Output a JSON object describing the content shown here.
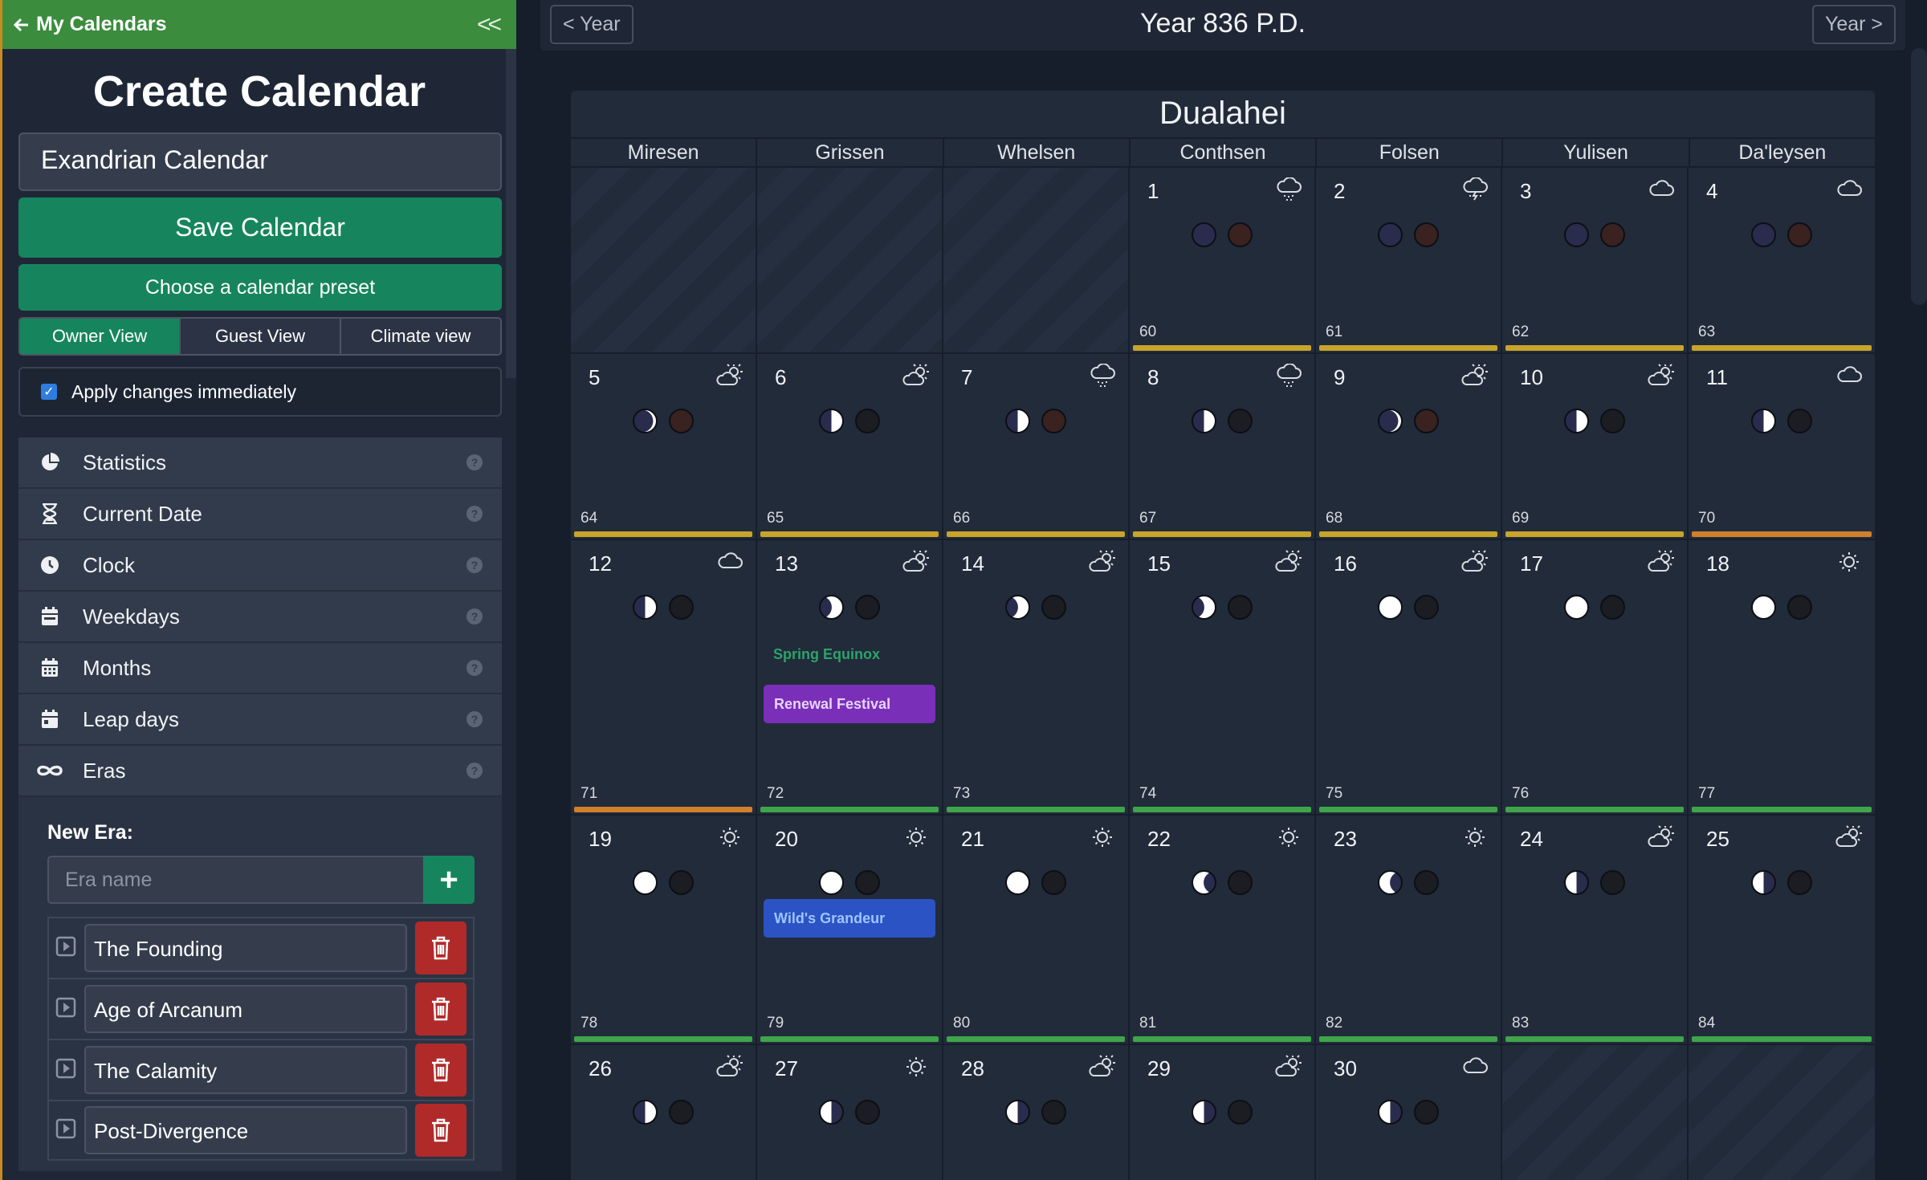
{
  "sidebar": {
    "back_label": "My Calendars",
    "collapse_label": "<<",
    "title": "Create Calendar",
    "calendar_name": "Exandrian Calendar",
    "save_label": "Save Calendar",
    "preset_label": "Choose a calendar preset",
    "views": [
      {
        "label": "Owner View",
        "active": true
      },
      {
        "label": "Guest View",
        "active": false
      },
      {
        "label": "Climate view",
        "active": false
      }
    ],
    "apply_label": "Apply changes immediately",
    "apply_checked": true,
    "menu": [
      {
        "label": "Statistics",
        "icon": "pie-chart-icon"
      },
      {
        "label": "Current Date",
        "icon": "hourglass-icon"
      },
      {
        "label": "Clock",
        "icon": "clock-icon"
      },
      {
        "label": "Weekdays",
        "icon": "calendar-week-icon"
      },
      {
        "label": "Months",
        "icon": "calendar-month-icon"
      },
      {
        "label": "Leap days",
        "icon": "calendar-day-icon"
      },
      {
        "label": "Eras",
        "icon": "infinity-icon"
      }
    ],
    "help_glyph": "?",
    "eras": {
      "new_title": "New Era:",
      "placeholder": "Era name",
      "add_label": "+",
      "items": [
        "The Founding",
        "Age of Arcanum",
        "The Calamity",
        "Post-Divergence"
      ]
    }
  },
  "header": {
    "prev_label": "< Year",
    "next_label": "Year >",
    "title": "Year 836 P.D."
  },
  "month": {
    "name": "Dualahei",
    "weekdays": [
      "Miresen",
      "Grissen",
      "Whelsen",
      "Conthsen",
      "Folsen",
      "Yulisen",
      "Da'leysen"
    ],
    "start_offset": 3,
    "colors": {
      "yellow": "#c8a52a",
      "orange": "#d07f2b",
      "green": "#3fa54a",
      "season": "#2ba36a",
      "renewal": "#7a2fb8",
      "grandeur": "#2c53c4"
    },
    "days": [
      {
        "d": "1",
        "yd": "60",
        "wx": "rain-cloud-icon",
        "m1": "new",
        "m2": "new",
        "bar": "yellow"
      },
      {
        "d": "2",
        "yd": "61",
        "wx": "storm-cloud-icon",
        "m1": "new",
        "m2": "new",
        "bar": "yellow"
      },
      {
        "d": "3",
        "yd": "62",
        "wx": "cloud-icon",
        "m1": "new",
        "m2": "new",
        "bar": "yellow"
      },
      {
        "d": "4",
        "yd": "63",
        "wx": "cloud-icon",
        "m1": "new",
        "m2": "new",
        "bar": "yellow"
      },
      {
        "d": "5",
        "yd": "64",
        "wx": "partly-sunny-icon",
        "m1": "crescent",
        "m2": "new",
        "bar": "yellow"
      },
      {
        "d": "6",
        "yd": "65",
        "wx": "partly-sunny-icon",
        "m1": "quarter",
        "m2": "dark",
        "bar": "yellow"
      },
      {
        "d": "7",
        "yd": "66",
        "wx": "rain-cloud-icon",
        "m1": "quarter",
        "m2": "new",
        "bar": "yellow"
      },
      {
        "d": "8",
        "yd": "67",
        "wx": "rain-cloud-icon",
        "m1": "quarter",
        "m2": "dark",
        "bar": "yellow"
      },
      {
        "d": "9",
        "yd": "68",
        "wx": "partly-sunny-icon",
        "m1": "crescent",
        "m2": "new",
        "bar": "yellow"
      },
      {
        "d": "10",
        "yd": "69",
        "wx": "partly-sunny-icon",
        "m1": "quarter",
        "m2": "dark",
        "bar": "yellow"
      },
      {
        "d": "11",
        "yd": "70",
        "wx": "cloud-icon",
        "m1": "quarter",
        "m2": "dark",
        "bar": "orange"
      },
      {
        "d": "12",
        "yd": "71",
        "wx": "cloud-icon",
        "m1": "quarter",
        "m2": "dark",
        "bar": "orange"
      },
      {
        "d": "13",
        "yd": "72",
        "wx": "partly-sunny-icon",
        "m1": "gibbous",
        "m2": "dark",
        "bar": "green",
        "season": "Spring Equinox",
        "event": {
          "label": "Renewal Festival",
          "color": "renewal",
          "text": "#e6d3ff"
        }
      },
      {
        "d": "14",
        "yd": "73",
        "wx": "partly-sunny-icon",
        "m1": "gibbous",
        "m2": "dark",
        "bar": "green"
      },
      {
        "d": "15",
        "yd": "74",
        "wx": "partly-sunny-icon",
        "m1": "gibbous",
        "m2": "dark",
        "bar": "green"
      },
      {
        "d": "16",
        "yd": "75",
        "wx": "partly-sunny-icon",
        "m1": "full",
        "m2": "dark",
        "bar": "green"
      },
      {
        "d": "17",
        "yd": "76",
        "wx": "partly-sunny-icon",
        "m1": "full",
        "m2": "dark",
        "bar": "green"
      },
      {
        "d": "18",
        "yd": "77",
        "wx": "sun-icon",
        "m1": "full",
        "m2": "dark",
        "bar": "green"
      },
      {
        "d": "19",
        "yd": "78",
        "wx": "sun-icon",
        "m1": "full",
        "m2": "dark",
        "bar": "green"
      },
      {
        "d": "20",
        "yd": "79",
        "wx": "sun-icon",
        "m1": "full",
        "m2": "dark",
        "bar": "green",
        "event": {
          "label": "Wild's Grandeur",
          "color": "grandeur",
          "text": "#9cc4ff"
        }
      },
      {
        "d": "21",
        "yd": "80",
        "wx": "sun-icon",
        "m1": "full",
        "m2": "dark",
        "bar": "green"
      },
      {
        "d": "22",
        "yd": "81",
        "wx": "sun-icon",
        "m1": "gibbous-w",
        "m2": "dark",
        "bar": "green"
      },
      {
        "d": "23",
        "yd": "82",
        "wx": "sun-icon",
        "m1": "gibbous-w",
        "m2": "dark",
        "bar": "green"
      },
      {
        "d": "24",
        "yd": "83",
        "wx": "partly-sunny-icon",
        "m1": "quarter-w",
        "m2": "dark",
        "bar": "green"
      },
      {
        "d": "25",
        "yd": "84",
        "wx": "partly-sunny-icon",
        "m1": "quarter-w",
        "m2": "dark",
        "bar": "green"
      },
      {
        "d": "26",
        "yd": "",
        "wx": "partly-sunny-icon",
        "m1": "quarter",
        "m2": "dark",
        "bar": ""
      },
      {
        "d": "27",
        "yd": "",
        "wx": "sun-icon",
        "m1": "quarter-w",
        "m2": "dark",
        "bar": ""
      },
      {
        "d": "28",
        "yd": "",
        "wx": "partly-sunny-icon",
        "m1": "quarter-w",
        "m2": "dark",
        "bar": ""
      },
      {
        "d": "29",
        "yd": "",
        "wx": "partly-sunny-icon",
        "m1": "quarter-w",
        "m2": "dark",
        "bar": ""
      },
      {
        "d": "30",
        "yd": "",
        "wx": "cloud-icon",
        "m1": "quarter-w",
        "m2": "dark",
        "bar": ""
      }
    ]
  }
}
